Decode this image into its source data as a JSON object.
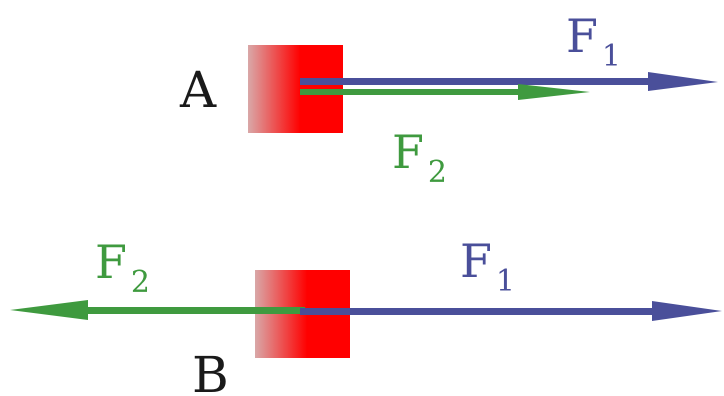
{
  "colors": {
    "block_red": "#ff0000",
    "block_fade": "#d9a8a8",
    "force_1": "#4a4f9a",
    "force_2": "#3f9a3f",
    "text": "#1a1a1a"
  },
  "scenario_a": {
    "label": "A",
    "force_1": {
      "symbol": "F",
      "subscript": "1",
      "direction": "right"
    },
    "force_2": {
      "symbol": "F",
      "subscript": "2",
      "direction": "right"
    }
  },
  "scenario_b": {
    "label": "B",
    "force_1": {
      "symbol": "F",
      "subscript": "1",
      "direction": "right"
    },
    "force_2": {
      "symbol": "F",
      "subscript": "2",
      "direction": "left"
    }
  }
}
